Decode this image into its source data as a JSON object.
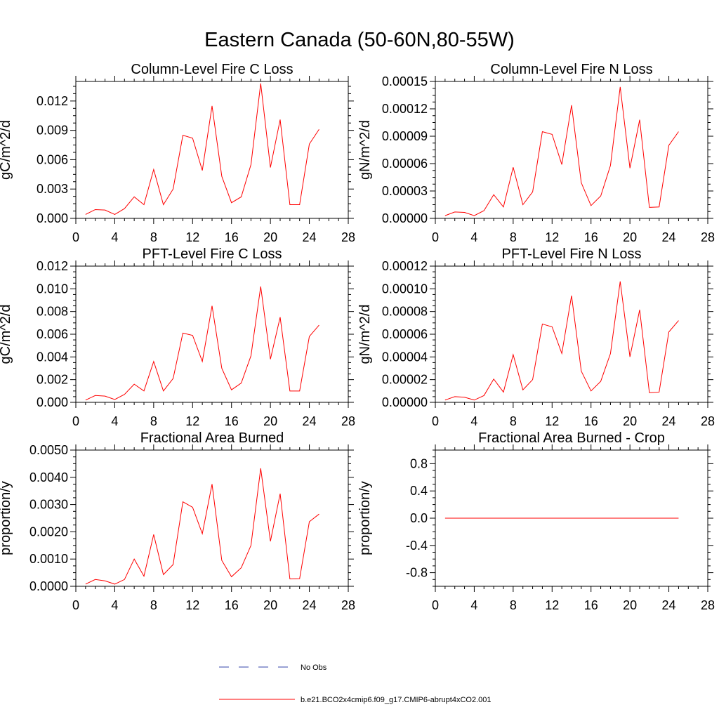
{
  "page_title": "Eastern Canada (50-60N,80-55W)",
  "colors": {
    "series": "#ff0000",
    "obs": "#3344aa",
    "axes": "#000000"
  },
  "legend": {
    "obs_label": "No Obs",
    "model_label": "b.e21.BCO2x4cmip6.f09_g17.CMIP6-abrupt4xCO2.001"
  },
  "chart_data": [
    {
      "type": "line",
      "title": "Column-Level Fire C Loss",
      "ylabel": "gC/m^2/d",
      "xlim": [
        0,
        28
      ],
      "ylim": [
        0,
        0.014
      ],
      "x_ticks": [
        0,
        4,
        8,
        12,
        16,
        20,
        24,
        28
      ],
      "y_ticks": [
        0,
        0.003,
        0.006,
        0.009,
        0.012
      ],
      "y_tick_labels": [
        "0.000",
        "0.003",
        "0.006",
        "0.009",
        "0.012"
      ],
      "x": [
        1,
        2,
        3,
        4,
        5,
        6,
        7,
        8,
        9,
        10,
        11,
        12,
        13,
        14,
        15,
        16,
        17,
        18,
        19,
        20,
        21,
        22,
        23,
        24,
        25
      ],
      "series": [
        {
          "name": "b.e21.BCO2x4cmip6.f09_g17.CMIP6-abrupt4xCO2.001",
          "values": [
            0.0004,
            0.0009,
            0.00085,
            0.0004,
            0.001,
            0.0022,
            0.0014,
            0.005,
            0.0014,
            0.003,
            0.0085,
            0.0082,
            0.0049,
            0.0115,
            0.0043,
            0.0016,
            0.0022,
            0.0055,
            0.0138,
            0.0052,
            0.0101,
            0.0014,
            0.0014,
            0.0076,
            0.0091
          ]
        }
      ]
    },
    {
      "type": "line",
      "title": "Column-Level Fire N Loss",
      "ylabel": "gN/m^2/d",
      "xlim": [
        0,
        28
      ],
      "ylim": [
        0,
        0.00015
      ],
      "x_ticks": [
        0,
        4,
        8,
        12,
        16,
        20,
        24,
        28
      ],
      "y_ticks": [
        0,
        3e-05,
        6e-05,
        9e-05,
        0.00012,
        0.00015
      ],
      "y_tick_labels": [
        "0.00000",
        "0.00003",
        "0.00006",
        "0.00009",
        "0.00012",
        "0.00015"
      ],
      "x": [
        1,
        2,
        3,
        4,
        5,
        6,
        7,
        8,
        9,
        10,
        11,
        12,
        13,
        14,
        15,
        16,
        17,
        18,
        19,
        20,
        21,
        22,
        23,
        24,
        25
      ],
      "series": [
        {
          "name": "b.e21.BCO2x4cmip6.f09_g17.CMIP6-abrupt4xCO2.001",
          "values": [
            3e-06,
            7e-06,
            6.5e-06,
            3e-06,
            8.5e-06,
            2.6e-05,
            1.25e-05,
            5.6e-05,
            1.5e-05,
            2.9e-05,
            9.5e-05,
            9.2e-05,
            5.9e-05,
            0.000124,
            3.9e-05,
            1.4e-05,
            2.45e-05,
            5.8e-05,
            0.000144,
            5.5e-05,
            0.000108,
            1.2e-05,
            1.25e-05,
            8e-05,
            9.5e-05
          ]
        }
      ]
    },
    {
      "type": "line",
      "title": "PFT-Level Fire C Loss",
      "ylabel": "gC/m^2/d",
      "xlim": [
        0,
        28
      ],
      "ylim": [
        0,
        0.012
      ],
      "x_ticks": [
        0,
        4,
        8,
        12,
        16,
        20,
        24,
        28
      ],
      "y_ticks": [
        0,
        0.002,
        0.004,
        0.006,
        0.008,
        0.01,
        0.012
      ],
      "y_tick_labels": [
        "0.000",
        "0.002",
        "0.004",
        "0.006",
        "0.008",
        "0.010",
        "0.012"
      ],
      "x": [
        1,
        2,
        3,
        4,
        5,
        6,
        7,
        8,
        9,
        10,
        11,
        12,
        13,
        14,
        15,
        16,
        17,
        18,
        19,
        20,
        21,
        22,
        23,
        24,
        25
      ],
      "series": [
        {
          "name": "b.e21.BCO2x4cmip6.f09_g17.CMIP6-abrupt4xCO2.001",
          "values": [
            0.0002,
            0.0006,
            0.00055,
            0.00025,
            0.0007,
            0.0016,
            0.001,
            0.0036,
            0.001,
            0.0021,
            0.0061,
            0.0059,
            0.0036,
            0.0085,
            0.003,
            0.0011,
            0.0017,
            0.0041,
            0.0102,
            0.0038,
            0.0075,
            0.001,
            0.001,
            0.0058,
            0.0068
          ]
        }
      ]
    },
    {
      "type": "line",
      "title": "PFT-Level Fire N Loss",
      "ylabel": "gN/m^2/d",
      "xlim": [
        0,
        28
      ],
      "ylim": [
        0,
        0.00012
      ],
      "x_ticks": [
        0,
        4,
        8,
        12,
        16,
        20,
        24,
        28
      ],
      "y_ticks": [
        0,
        2e-05,
        4e-05,
        6e-05,
        8e-05,
        0.0001,
        0.00012
      ],
      "y_tick_labels": [
        "0.00000",
        "0.00002",
        "0.00004",
        "0.00006",
        "0.00008",
        "0.00010",
        "0.00012"
      ],
      "x": [
        1,
        2,
        3,
        4,
        5,
        6,
        7,
        8,
        9,
        10,
        11,
        12,
        13,
        14,
        15,
        16,
        17,
        18,
        19,
        20,
        21,
        22,
        23,
        24,
        25
      ],
      "series": [
        {
          "name": "b.e21.BCO2x4cmip6.f09_g17.CMIP6-abrupt4xCO2.001",
          "values": [
            2e-06,
            5e-06,
            4.5e-06,
            2e-06,
            6e-06,
            2.05e-05,
            9e-06,
            4.2e-05,
            1.1e-05,
            2e-05,
            6.9e-05,
            6.65e-05,
            4.3e-05,
            9.4e-05,
            2.75e-05,
            1e-05,
            1.85e-05,
            4.3e-05,
            0.0001065,
            4e-05,
            8.15e-05,
            8.5e-06,
            9e-06,
            6.2e-05,
            7.2e-05
          ]
        }
      ]
    },
    {
      "type": "line",
      "title": "Fractional Area Burned",
      "ylabel": "proportion/y",
      "xlim": [
        0,
        28
      ],
      "ylim": [
        0,
        0.005
      ],
      "x_ticks": [
        0,
        4,
        8,
        12,
        16,
        20,
        24,
        28
      ],
      "y_ticks": [
        0,
        0.001,
        0.002,
        0.003,
        0.004,
        0.005
      ],
      "y_tick_labels": [
        "0.0000",
        "0.0010",
        "0.0020",
        "0.0030",
        "0.0040",
        "0.0050"
      ],
      "x": [
        1,
        2,
        3,
        4,
        5,
        6,
        7,
        8,
        9,
        10,
        11,
        12,
        13,
        14,
        15,
        16,
        17,
        18,
        19,
        20,
        21,
        22,
        23,
        24,
        25
      ],
      "series": [
        {
          "name": "b.e21.BCO2x4cmip6.f09_g17.CMIP6-abrupt4xCO2.001",
          "values": [
            8e-05,
            0.00025,
            0.0002,
            8e-05,
            0.00025,
            0.001,
            0.00037,
            0.0019,
            0.00043,
            0.0008,
            0.0031,
            0.0029,
            0.00193,
            0.00375,
            0.00095,
            0.00035,
            0.00068,
            0.0015,
            0.00433,
            0.00165,
            0.0034,
            0.00027,
            0.00028,
            0.00237,
            0.00265
          ]
        }
      ]
    },
    {
      "type": "line",
      "title": "Fractional Area Burned - Crop",
      "ylabel": "proportion/y",
      "xlim": [
        0,
        28
      ],
      "ylim": [
        -1,
        1
      ],
      "x_ticks": [
        0,
        4,
        8,
        12,
        16,
        20,
        24,
        28
      ],
      "y_ticks": [
        -0.8,
        -0.4,
        0,
        0.4,
        0.8
      ],
      "y_tick_labels": [
        "-0.8",
        "-0.4",
        "0.0",
        "0.4",
        "0.8"
      ],
      "x": [
        1,
        2,
        3,
        4,
        5,
        6,
        7,
        8,
        9,
        10,
        11,
        12,
        13,
        14,
        15,
        16,
        17,
        18,
        19,
        20,
        21,
        22,
        23,
        24,
        25
      ],
      "series": [
        {
          "name": "b.e21.BCO2x4cmip6.f09_g17.CMIP6-abrupt4xCO2.001",
          "values": [
            0,
            0,
            0,
            0,
            0,
            0,
            0,
            0,
            0,
            0,
            0,
            0,
            0,
            0,
            0,
            0,
            0,
            0,
            0,
            0,
            0,
            0,
            0,
            0,
            0
          ]
        }
      ]
    }
  ]
}
